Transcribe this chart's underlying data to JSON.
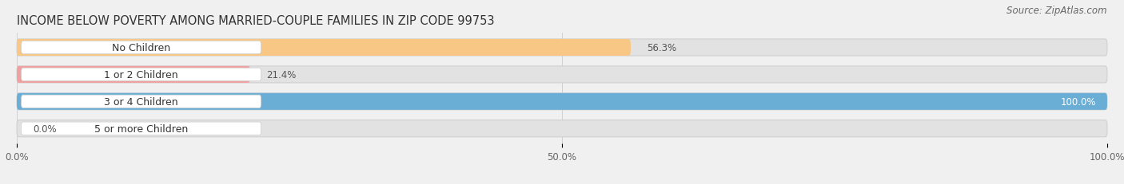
{
  "title": "INCOME BELOW POVERTY AMONG MARRIED-COUPLE FAMILIES IN ZIP CODE 99753",
  "source": "Source: ZipAtlas.com",
  "categories": [
    "No Children",
    "1 or 2 Children",
    "3 or 4 Children",
    "5 or more Children"
  ],
  "values": [
    56.3,
    21.4,
    100.0,
    0.0
  ],
  "bar_colors": [
    "#f9c785",
    "#f0a0a0",
    "#6aadd5",
    "#c3a8d1"
  ],
  "bg_color": "#f0f0f0",
  "bar_bg_color": "#e2e2e2",
  "xlim_max": 100.0,
  "xticks": [
    0.0,
    50.0,
    100.0
  ],
  "xtick_labels": [
    "0.0%",
    "50.0%",
    "100.0%"
  ],
  "bar_height": 0.62,
  "title_fontsize": 10.5,
  "label_fontsize": 9.0,
  "value_fontsize": 8.5,
  "tick_fontsize": 8.5,
  "source_fontsize": 8.5,
  "value_labels": [
    "56.3%",
    "21.4%",
    "100.0%",
    "0.0%"
  ],
  "value_inside": [
    false,
    false,
    true,
    false
  ]
}
